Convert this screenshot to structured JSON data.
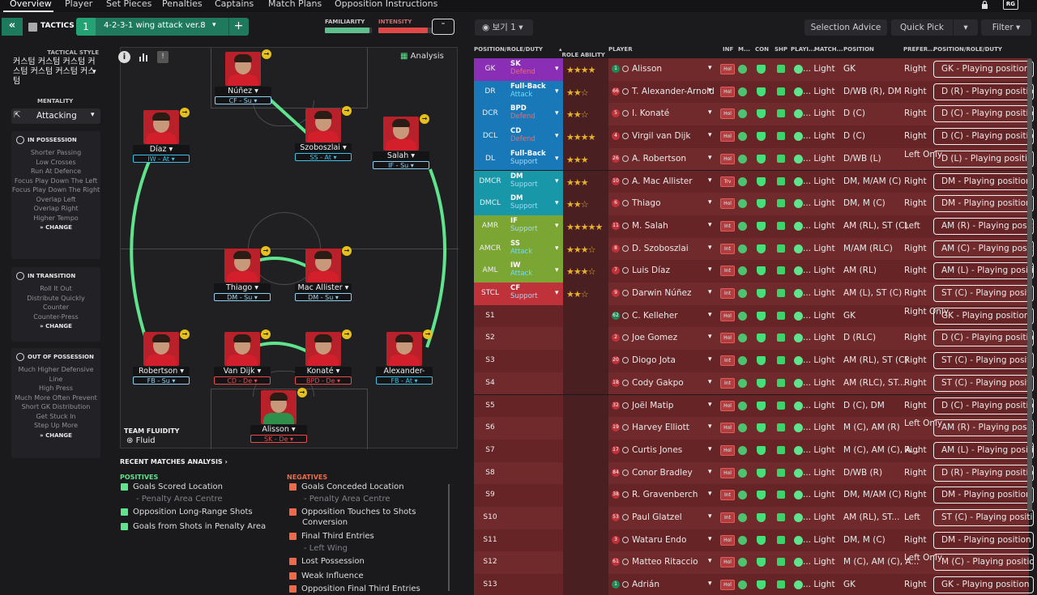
{
  "nav": {
    "tabs": [
      "Overview",
      "Player",
      "Set Pieces",
      "Penalties",
      "Captains",
      "Match Plans",
      "Opposition Instructions"
    ],
    "badge": "RG"
  },
  "tactics": {
    "title": "TACTICS",
    "number": "1",
    "name": "4-2-3-1 wing attack ver.8",
    "plus": "+",
    "familiarity_label": "FAMILIARITY",
    "intensity_label": "INTENSITY",
    "familiarity_level": 0.95,
    "intensity_level": 0.85
  },
  "style": {
    "label": "TACTICAL STYLE",
    "value": "커스텀 커스텀 커스텀 커스텀 커스텀 커스텀 커스텀"
  },
  "mentality": {
    "label": "MENTALITY",
    "value": "Attacking"
  },
  "in_possession": {
    "title": "IN POSSESSION",
    "items": [
      "Shorter Passing",
      "Low Crosses",
      "Run At Defence",
      "Focus Play Down The Left",
      "Focus Play Down The Right",
      "Overlap Left",
      "Overlap Right",
      "Higher Tempo"
    ],
    "change": "CHANGE"
  },
  "in_transition": {
    "title": "IN TRANSITION",
    "items": [
      "Roll It Out",
      "Distribute Quickly",
      "Counter",
      "Counter-Press"
    ],
    "change": "CHANGE"
  },
  "out_possession": {
    "title": "OUT OF POSSESSION",
    "items": [
      "Much Higher Defensive Line",
      "High Press",
      "Much More Often Prevent Short GK Distribution",
      "Get Stuck In",
      "Step Up More"
    ],
    "change": "CHANGE"
  },
  "analysis": {
    "label": "Analysis"
  },
  "fluidity": {
    "label": "TEAM FLUIDITY",
    "value": "Fluid"
  },
  "pitch_players": [
    {
      "name": "Núñez",
      "role": "CF - Su",
      "duty": "support"
    },
    {
      "name": "Díaz",
      "role": "IW - At",
      "duty": "attack"
    },
    {
      "name": "Szoboszlai",
      "role": "SS - At",
      "duty": "attack"
    },
    {
      "name": "Salah",
      "role": "IF - Su",
      "duty": "support"
    },
    {
      "name": "Thiago",
      "role": "DM - Su",
      "duty": "support"
    },
    {
      "name": "Mac Allister",
      "role": "DM - Su",
      "duty": "support"
    },
    {
      "name": "Robertson",
      "role": "FB - Su",
      "duty": "support"
    },
    {
      "name": "Van Dijk",
      "role": "CD - De",
      "duty": "defend"
    },
    {
      "name": "Konaté",
      "role": "BPD - De",
      "duty": "defend"
    },
    {
      "name": "Alexander-Arnold",
      "role": "FB - At",
      "duty": "attack"
    },
    {
      "name": "Alisson",
      "role": "SK - De",
      "duty": "defend"
    }
  ],
  "rma": {
    "title": "RECENT MATCHES ANALYSIS",
    "positives_label": "POSITIVES",
    "negatives_label": "NEGATIVES",
    "positives": [
      "Goals Scored Location",
      "Penalty Area Centre",
      "Opposition Long-Range Shots",
      "Goals from Shots in Penalty Area"
    ],
    "negatives": [
      "Goals Conceded Location",
      "Penalty Area Centre",
      "Opposition Touches to Shots",
      "Conversion",
      "Final Third Entries",
      "Left Wing",
      "Lost Possession",
      "Weak Influence",
      "Opposition Final Third Entries"
    ]
  },
  "toolbar": {
    "view": "보기 1",
    "selection": "Selection Advice",
    "quickpick": "Quick Pick",
    "filter": "Filter"
  },
  "columns": [
    "POSITION/ROLE/DUTY",
    "ROLE ABILITY",
    "PLAYER",
    "INF",
    "M...",
    "CON",
    "SHP",
    "PLAYI...",
    "MATCH...",
    "POSITION",
    "PREFER...",
    "POSITION/ROLE/DUTY"
  ],
  "colors": {
    "gk": "#8a2fb5",
    "def": "#1979b8",
    "dm": "#1797a8",
    "att": "#7ba634",
    "st": "#c0323a",
    "attack": "#3fc1e6",
    "defend": "#ec4a4a",
    "support": "#8fd0f0",
    "green": "#5fe38c"
  },
  "rows": [
    {
      "pos": "GK",
      "role": "SK",
      "duty": "Defend",
      "stars": "★★★★",
      "num": "1",
      "player": "Alisson",
      "inf": "Hol",
      "match": "... Light",
      "position": "GK",
      "pref": "Right",
      "prpd": "GK - Playing position",
      "grp": "gk"
    },
    {
      "pos": "DR",
      "role": "Full-Back",
      "duty": "Attack",
      "stars": "★★☆",
      "num": "66",
      "player": "T. Alexander-Arnold",
      "inf": "Hol",
      "match": "... Light",
      "position": "D/WB (R), DM",
      "pref": "Right",
      "prpd": "D (R) - Playing position",
      "grp": "def"
    },
    {
      "pos": "DCR",
      "role": "BPD",
      "duty": "Defend",
      "stars": "★★☆",
      "num": "5",
      "player": "I. Konaté",
      "inf": "Hol",
      "match": "... Light",
      "position": "D (C)",
      "pref": "Right",
      "prpd": "D (C) - Playing position",
      "grp": "def"
    },
    {
      "pos": "DCL",
      "role": "CD",
      "duty": "Defend",
      "stars": "★★★★",
      "num": "4",
      "player": "Virgil van Dijk",
      "inf": "Hol",
      "match": "... Light",
      "position": "D (C)",
      "pref": "Right",
      "prpd": "D (C) - Playing position",
      "grp": "def"
    },
    {
      "pos": "DL",
      "role": "Full-Back",
      "duty": "Support",
      "stars": "★★★",
      "num": "26",
      "player": "A. Robertson",
      "inf": "Hol",
      "match": "... Light",
      "position": "D/WB (L)",
      "pref": "Left Only",
      "prpd": "D (L) - Playing position",
      "grp": "def"
    },
    {
      "pos": "DMCR",
      "role": "DM",
      "duty": "Support",
      "stars": "★★★",
      "num": "10",
      "player": "A. Mac Allister",
      "inf": "Trv",
      "match": "... Light",
      "position": "DM, M/AM (C)",
      "pref": "Right",
      "prpd": "DM - Playing position",
      "grp": "dm"
    },
    {
      "pos": "DMCL",
      "role": "DM",
      "duty": "Support",
      "stars": "★★☆",
      "num": "6",
      "player": "Thiago",
      "inf": "Hol",
      "match": "... Light",
      "position": "DM, M (C)",
      "pref": "Right",
      "prpd": "DM - Playing position",
      "grp": "dm"
    },
    {
      "pos": "AMR",
      "role": "IF",
      "duty": "Support",
      "stars": "★★★★★",
      "num": "11",
      "player": "M. Salah",
      "inf": "Int",
      "match": "... Light",
      "position": "AM (RL), ST (C)",
      "pref": "Left",
      "prpd": "AM (R) - Playing position",
      "grp": "att"
    },
    {
      "pos": "AMCR",
      "role": "SS",
      "duty": "Attack",
      "stars": "★★★☆",
      "num": "8",
      "player": "D. Szoboszlai",
      "inf": "Int",
      "match": "... Light",
      "position": "M/AM (RLC)",
      "pref": "Right",
      "prpd": "AM (C) - Playing position",
      "grp": "att"
    },
    {
      "pos": "AML",
      "role": "IW",
      "duty": "Attack",
      "stars": "★★★☆",
      "num": "7",
      "player": "Luis Díaz",
      "inf": "Int",
      "match": "... Light",
      "position": "AM (RL)",
      "pref": "Right",
      "prpd": "AM (L) - Playing position",
      "grp": "att"
    },
    {
      "pos": "STCL",
      "role": "CF",
      "duty": "Support",
      "stars": "★★☆",
      "num": "9",
      "player": "Darwin Núñez",
      "inf": "Int",
      "match": "... Light",
      "position": "AM (L), ST (C)",
      "pref": "Right",
      "prpd": "ST (C) - Playing position",
      "grp": "st"
    },
    {
      "pos": "S1",
      "num": "62",
      "player": "C. Kelleher",
      "inf": "Hol",
      "match": "... Light",
      "position": "GK",
      "pref": "Right Only",
      "prpd": "GK - Playing position"
    },
    {
      "pos": "S2",
      "num": "2",
      "player": "Joe Gomez",
      "inf": "Hol",
      "match": "... Light",
      "position": "D (RLC)",
      "pref": "Right",
      "prpd": "D (C) - Playing position"
    },
    {
      "pos": "S3",
      "num": "20",
      "player": "Diogo Jota",
      "inf": "Int",
      "match": "... Light",
      "position": "AM (RL), ST (C)",
      "pref": "Right",
      "prpd": "ST (C) - Playing position"
    },
    {
      "pos": "S4",
      "num": "18",
      "player": "Cody Gakpo",
      "inf": "Int",
      "match": "... Light",
      "position": "AM (RLC), ST...",
      "pref": "Right",
      "prpd": "ST (C) - Playing position"
    },
    {
      "pos": "S5",
      "num": "32",
      "player": "Joël Matip",
      "inf": "Hol",
      "match": "... Light",
      "position": "D (C), DM",
      "pref": "Right",
      "prpd": "D (C) - Playing position"
    },
    {
      "pos": "S6",
      "num": "19",
      "player": "Harvey Elliott",
      "inf": "Hol",
      "match": "... Light",
      "position": "M (C), AM (R)",
      "pref": "Left Only",
      "prpd": "AM (R) - Playing position"
    },
    {
      "pos": "S7",
      "num": "17",
      "player": "Curtis Jones",
      "inf": "Hol",
      "match": "... Light",
      "position": "M (C), AM (C), A...",
      "pref": "Right",
      "prpd": "AM (L) - Playing position"
    },
    {
      "pos": "S8",
      "num": "84",
      "player": "Conor Bradley",
      "inf": "Hol",
      "match": "... Light",
      "position": "D/WB (R)",
      "pref": "Right",
      "prpd": "D (R) - Playing position"
    },
    {
      "pos": "S9",
      "num": "38",
      "player": "R. Gravenberch",
      "inf": "Int",
      "match": "... Light",
      "position": "DM, M/AM (C)",
      "pref": "Right",
      "prpd": "DM - Playing position"
    },
    {
      "pos": "S10",
      "num": "53",
      "player": "Paul Glatzel",
      "inf": "Int",
      "match": "... Light",
      "position": "AM (RL), ST...",
      "pref": "Left",
      "prpd": "ST (C) - Playing position"
    },
    {
      "pos": "S11",
      "num": "3",
      "player": "Wataru Endo",
      "inf": "Hol",
      "match": "... Light",
      "position": "DM, M (C)",
      "pref": "Right",
      "prpd": "DM - Playing position"
    },
    {
      "pos": "S12",
      "num": "61",
      "player": "Matteo Ritaccio",
      "inf": "Hol",
      "match": "... Light",
      "position": "M (C), AM (C), A...",
      "pref": "Left Only",
      "prpd": "M (C) - Playing position"
    },
    {
      "pos": "S13",
      "num": "1",
      "player": "Adrián",
      "inf": "Hol",
      "match": "... Light",
      "position": "GK",
      "pref": "Right",
      "prpd": "GK - Playing position"
    }
  ]
}
